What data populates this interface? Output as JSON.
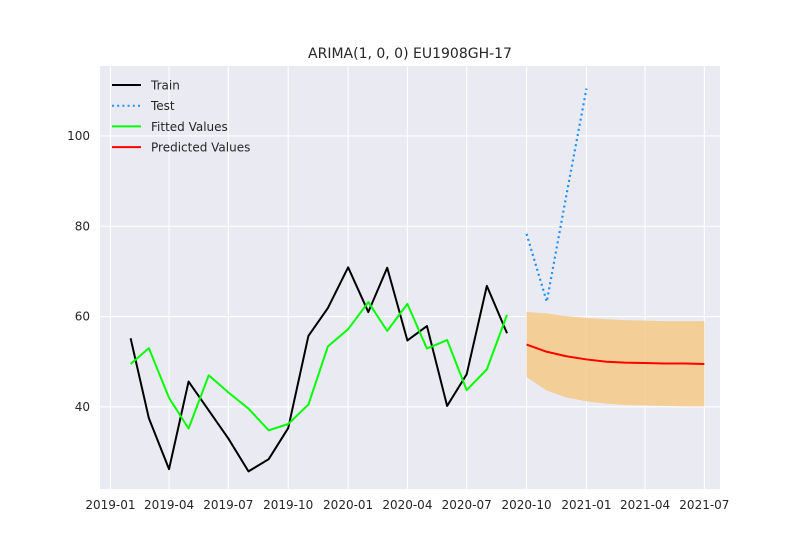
{
  "chart_data": {
    "type": "line",
    "title": "ARIMA(1, 0, 0) EU1908GH-17",
    "xlabel": "",
    "ylabel": "",
    "grid": true,
    "legend_position": "top-left",
    "xlim": [
      "2018-12-16",
      "2021-07-25"
    ],
    "ylim": [
      21.8,
      115.5
    ],
    "x_ticks": [
      "2019-01",
      "2019-04",
      "2019-07",
      "2019-10",
      "2020-01",
      "2020-04",
      "2020-07",
      "2020-10",
      "2021-01",
      "2021-04",
      "2021-07"
    ],
    "y_ticks": [
      40,
      60,
      80,
      100
    ],
    "colors": {
      "background": "#eaeaf2",
      "grid": "#ffffff",
      "train": "#000000",
      "test": "#1e90ff",
      "fitted": "#00ff00",
      "predicted": "#ff0000",
      "band": "#f5c987"
    },
    "series": [
      {
        "name": "Train",
        "style": "solid",
        "x": [
          "2019-02-01",
          "2019-03-01",
          "2019-04-01",
          "2019-05-01",
          "2019-06-01",
          "2019-07-01",
          "2019-08-01",
          "2019-09-01",
          "2019-10-01",
          "2019-11-01",
          "2019-12-01",
          "2020-01-01",
          "2020-02-01",
          "2020-03-01",
          "2020-04-01",
          "2020-05-01",
          "2020-06-01",
          "2020-07-01",
          "2020-08-01",
          "2020-09-01"
        ],
        "y": [
          55.2,
          37.5,
          26.2,
          45.6,
          39.2,
          33.0,
          25.7,
          28.4,
          35.3,
          55.7,
          61.9,
          70.9,
          61.0,
          70.8,
          54.7,
          57.9,
          40.2,
          47.2,
          66.8,
          56.3
        ]
      },
      {
        "name": "Test",
        "style": "dotted",
        "x": [
          "2020-10-01",
          "2020-11-01",
          "2020-12-01",
          "2021-01-01"
        ],
        "y": [
          78.3,
          63.3,
          86.8,
          110.5
        ]
      },
      {
        "name": "Fitted Values",
        "style": "solid",
        "x": [
          "2019-02-01",
          "2019-03-01",
          "2019-04-01",
          "2019-05-01",
          "2019-06-01",
          "2019-07-01",
          "2019-08-01",
          "2019-09-01",
          "2019-10-01",
          "2019-11-01",
          "2019-12-01",
          "2020-01-01",
          "2020-02-01",
          "2020-03-01",
          "2020-04-01",
          "2020-05-01",
          "2020-06-01",
          "2020-07-01",
          "2020-08-01",
          "2020-09-01"
        ],
        "y": [
          49.5,
          53.0,
          42.0,
          35.2,
          47.0,
          43.2,
          39.6,
          34.8,
          36.2,
          40.5,
          53.4,
          57.2,
          63.2,
          56.8,
          62.8,
          52.9,
          54.8,
          43.7,
          48.3,
          60.4
        ]
      },
      {
        "name": "Predicted Values",
        "style": "solid",
        "x": [
          "2020-10-01",
          "2020-11-01",
          "2020-12-01",
          "2021-01-01",
          "2021-02-01",
          "2021-03-01",
          "2021-04-01",
          "2021-05-01",
          "2021-06-01",
          "2021-07-01"
        ],
        "y": [
          53.8,
          52.2,
          51.2,
          50.5,
          50.0,
          49.8,
          49.7,
          49.6,
          49.6,
          49.5
        ]
      }
    ],
    "confidence_band": {
      "x": [
        "2020-10-01",
        "2020-11-01",
        "2020-12-01",
        "2021-01-01",
        "2021-02-01",
        "2021-03-01",
        "2021-04-01",
        "2021-05-01",
        "2021-06-01",
        "2021-07-01"
      ],
      "upper": [
        61.0,
        60.7,
        60.1,
        59.7,
        59.4,
        59.2,
        59.1,
        59.0,
        59.0,
        59.0
      ],
      "lower": [
        46.6,
        43.6,
        42.1,
        41.2,
        40.7,
        40.4,
        40.3,
        40.2,
        40.1,
        40.1
      ]
    }
  }
}
